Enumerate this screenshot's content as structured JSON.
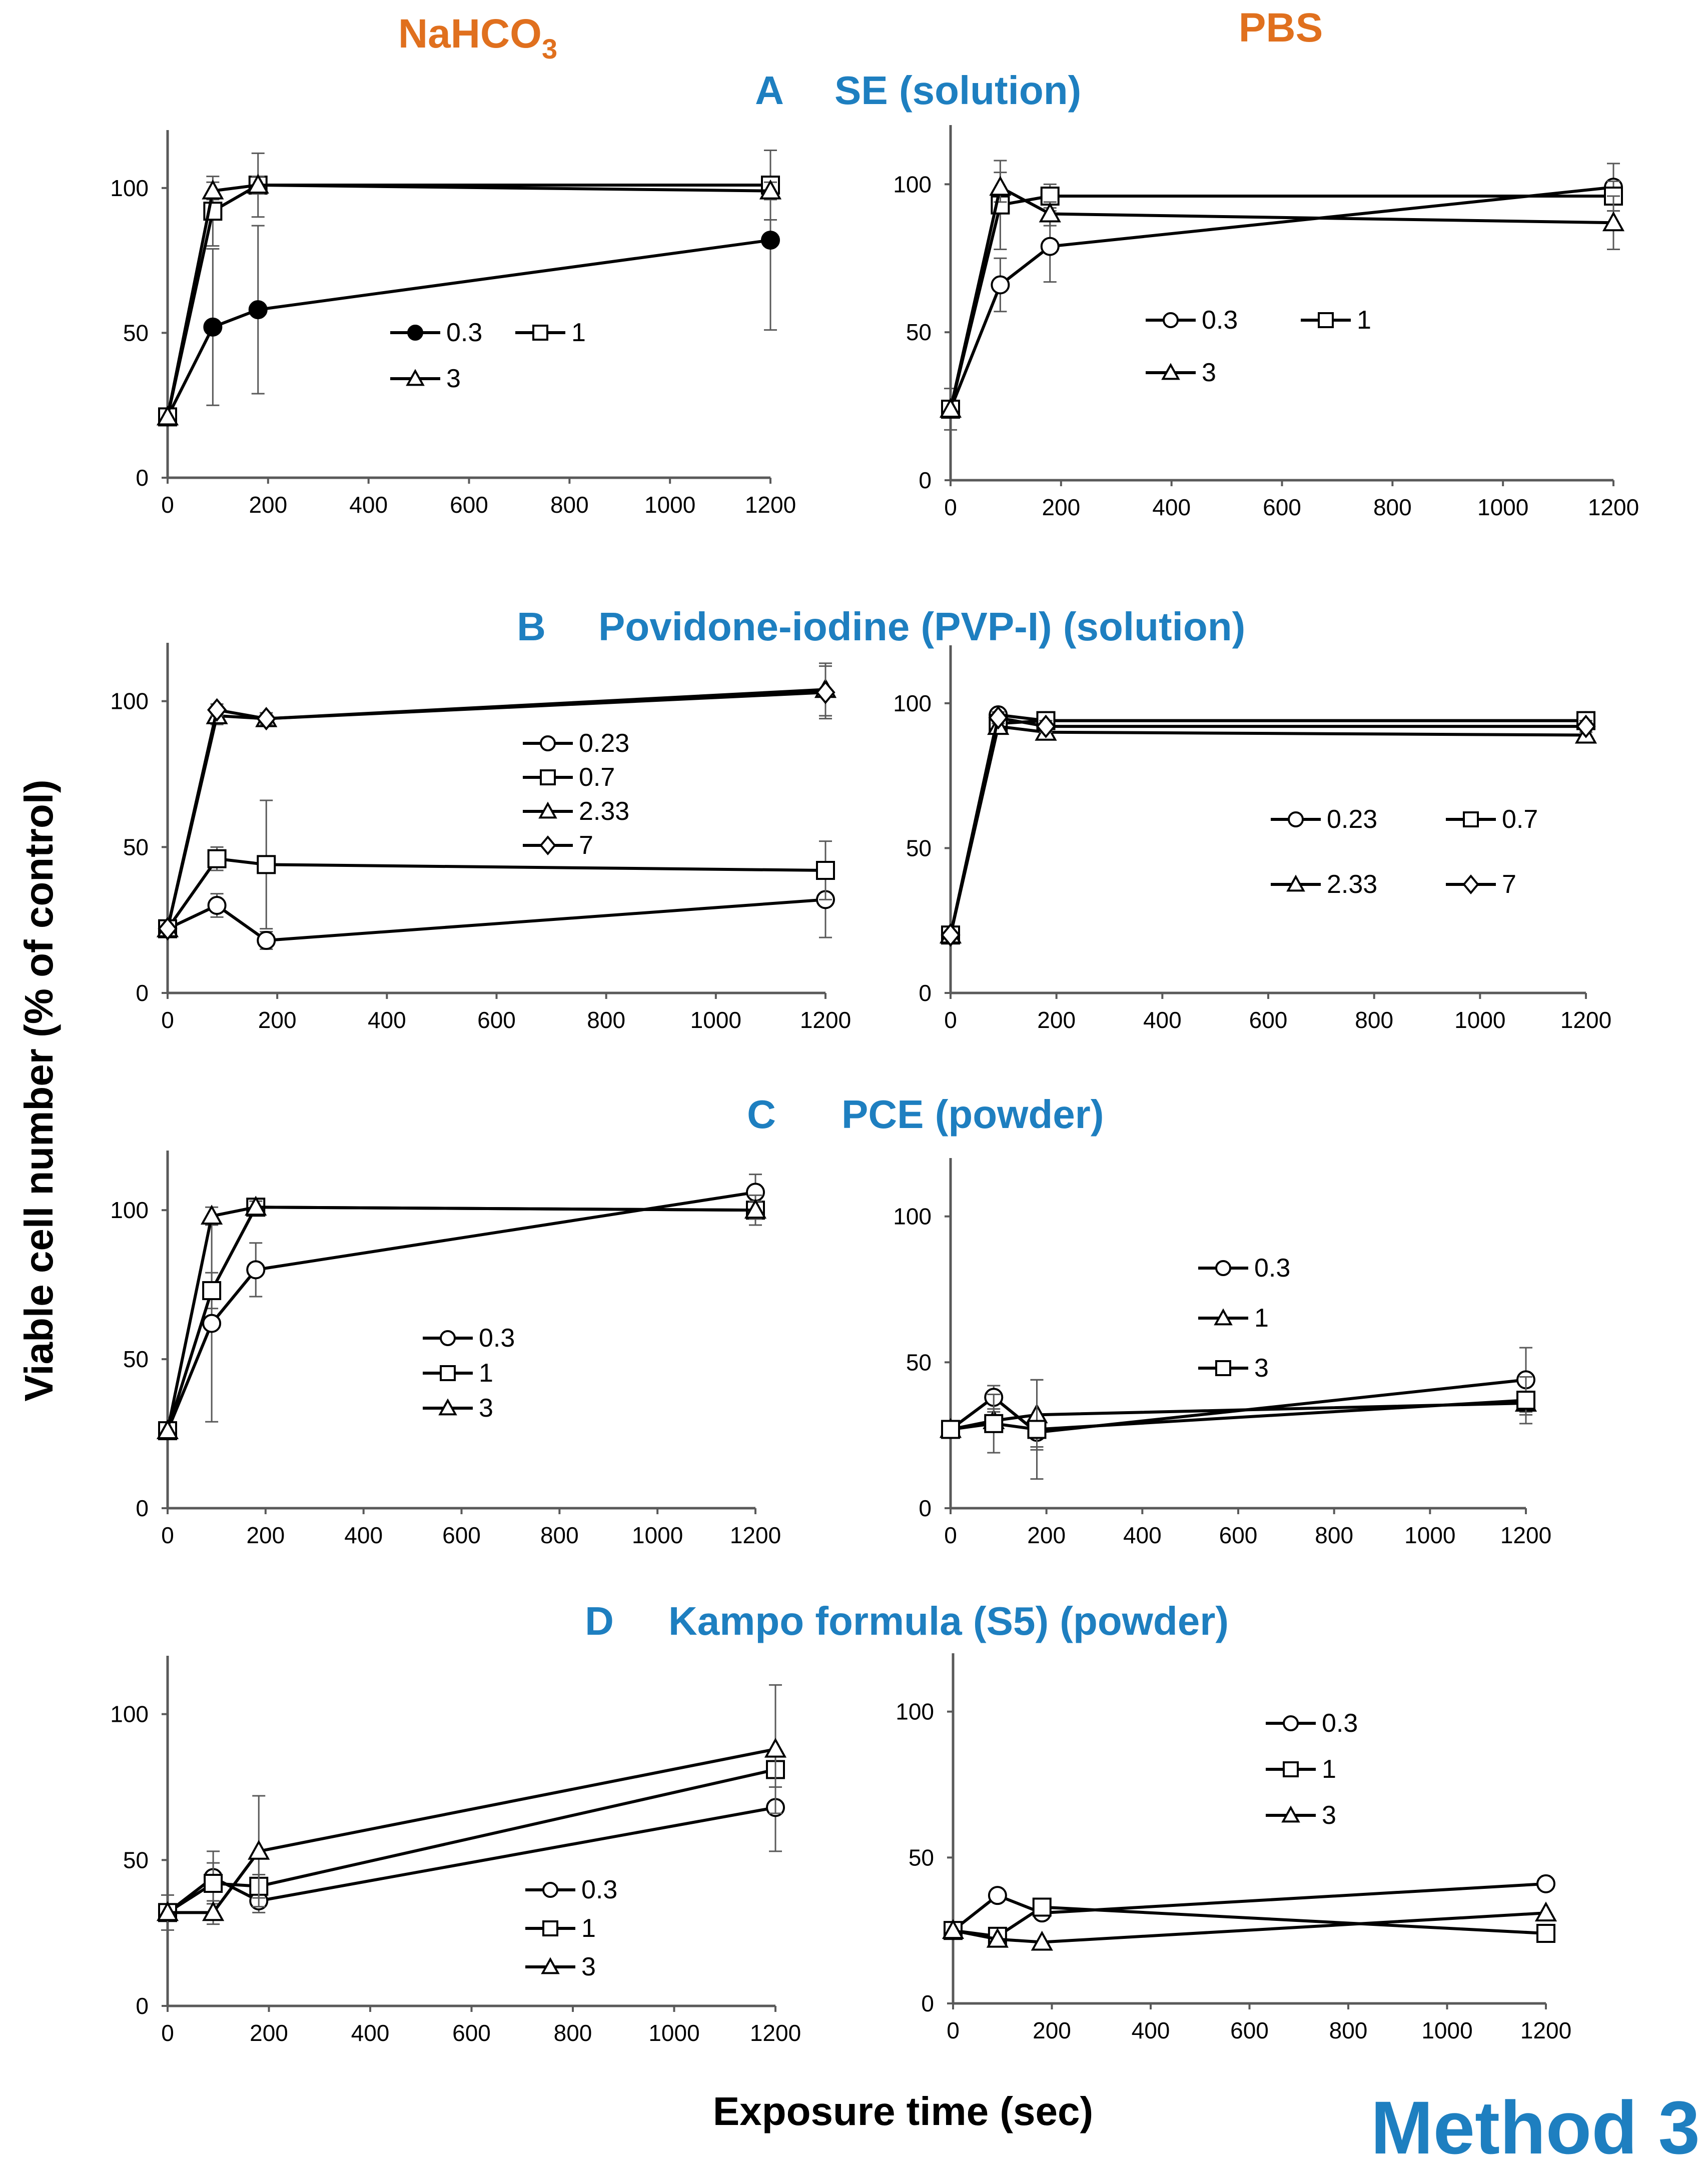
{
  "column_headers": {
    "left": "NaHCO",
    "left_sub": "3",
    "right": "PBS"
  },
  "y_axis_label": "Viable cell number (% of control)",
  "x_axis_label": "Exposure time (sec)",
  "corner_label": "Method 3",
  "colors": {
    "header": "#e0701e",
    "panel_title": "#1e7fc0",
    "ink": "#000000",
    "axis": "#595959"
  },
  "panel_titles": [
    {
      "letter": "A",
      "text": "SE (solution)"
    },
    {
      "letter": "B",
      "text": "Povidone-iodine (PVP-I) (solution)"
    },
    {
      "letter": "C",
      "text": "PCE (powder)"
    },
    {
      "letter": "D",
      "text": "Kampo formula (S5) (powder)"
    }
  ],
  "chart_data": [
    {
      "type": "line",
      "panel": "A",
      "buffer": "NaHCO3",
      "x": [
        0,
        90,
        180,
        1200
      ],
      "xlim": [
        0,
        1200
      ],
      "ylim": [
        0,
        120
      ],
      "xticks": [
        0,
        200,
        400,
        600,
        800,
        1000,
        1200
      ],
      "yticks": [
        0,
        50,
        100
      ],
      "series": [
        {
          "name": "0.3",
          "marker": "circle",
          "filled": true,
          "values": [
            21,
            52,
            58,
            82
          ],
          "errors": [
            null,
            27,
            29,
            31
          ]
        },
        {
          "name": "1",
          "marker": "square",
          "filled": false,
          "values": [
            21,
            92,
            101,
            101
          ],
          "errors": [
            null,
            12,
            11,
            12
          ]
        },
        {
          "name": "3",
          "marker": "triangle",
          "filled": false,
          "values": [
            21,
            99,
            101,
            99
          ],
          "errors": [
            null,
            3,
            3,
            3
          ]
        }
      ]
    },
    {
      "type": "line",
      "panel": "A",
      "buffer": "PBS",
      "x": [
        0,
        90,
        180,
        1200
      ],
      "xlim": [
        0,
        1200
      ],
      "ylim": [
        0,
        120
      ],
      "xticks": [
        0,
        200,
        400,
        600,
        800,
        1000,
        1200
      ],
      "yticks": [
        0,
        50,
        100
      ],
      "series": [
        {
          "name": "0.3",
          "marker": "circle",
          "filled": false,
          "values": [
            24,
            66,
            79,
            99
          ],
          "errors": [
            7,
            9,
            12,
            8
          ]
        },
        {
          "name": "1",
          "marker": "square",
          "filled": false,
          "values": [
            24,
            93,
            96,
            96
          ],
          "errors": [
            null,
            15,
            4,
            5
          ]
        },
        {
          "name": "3",
          "marker": "triangle",
          "filled": false,
          "values": [
            24,
            99,
            90,
            87
          ],
          "errors": [
            null,
            5,
            4,
            9
          ]
        }
      ]
    },
    {
      "type": "line",
      "panel": "B",
      "buffer": "NaHCO3",
      "x": [
        0,
        90,
        180,
        1200
      ],
      "xlim": [
        0,
        1200
      ],
      "ylim": [
        0,
        120
      ],
      "xticks": [
        0,
        200,
        400,
        600,
        800,
        1000,
        1200
      ],
      "yticks": [
        0,
        50,
        100
      ],
      "series": [
        {
          "name": "0.23",
          "marker": "circle",
          "filled": false,
          "values": [
            22,
            30,
            18,
            32
          ],
          "errors": [
            null,
            4,
            3,
            13
          ]
        },
        {
          "name": "0.7",
          "marker": "square",
          "filled": false,
          "values": [
            22,
            46,
            44,
            42
          ],
          "errors": [
            null,
            4,
            22,
            10
          ]
        },
        {
          "name": "2.33",
          "marker": "triangle",
          "filled": false,
          "values": [
            22,
            95,
            94,
            104
          ],
          "errors": [
            null,
            3,
            2,
            9
          ]
        },
        {
          "name": "7",
          "marker": "diamond",
          "filled": false,
          "values": [
            22,
            97,
            94,
            103
          ],
          "errors": [
            null,
            2,
            2,
            9
          ]
        }
      ]
    },
    {
      "type": "line",
      "panel": "B",
      "buffer": "PBS",
      "x": [
        0,
        90,
        180,
        1200
      ],
      "xlim": [
        0,
        1200
      ],
      "ylim": [
        0,
        120
      ],
      "xticks": [
        0,
        200,
        400,
        600,
        800,
        1000,
        1200
      ],
      "yticks": [
        0,
        50,
        100
      ],
      "series": [
        {
          "name": "0.23",
          "marker": "circle",
          "filled": false,
          "values": [
            20,
            96,
            94,
            94
          ],
          "errors": [
            null,
            2,
            2,
            2
          ]
        },
        {
          "name": "0.7",
          "marker": "square",
          "filled": false,
          "values": [
            20,
            93,
            94,
            94
          ],
          "errors": [
            null,
            2,
            2,
            2
          ]
        },
        {
          "name": "2.33",
          "marker": "triangle",
          "filled": false,
          "values": [
            20,
            92,
            90,
            89
          ],
          "errors": [
            null,
            2,
            2,
            2
          ]
        },
        {
          "name": "7",
          "marker": "diamond",
          "filled": false,
          "values": [
            20,
            95,
            92,
            92
          ],
          "errors": [
            null,
            2,
            2,
            2
          ]
        }
      ]
    },
    {
      "type": "line",
      "panel": "C",
      "buffer": "NaHCO3",
      "x": [
        0,
        90,
        180,
        1200
      ],
      "xlim": [
        0,
        1200
      ],
      "ylim": [
        0,
        120
      ],
      "xticks": [
        0,
        200,
        400,
        600,
        800,
        1000,
        1200
      ],
      "yticks": [
        0,
        50,
        100
      ],
      "series": [
        {
          "name": "0.3",
          "marker": "circle",
          "filled": false,
          "values": [
            26,
            62,
            80,
            106
          ],
          "errors": [
            null,
            33,
            9,
            6
          ]
        },
        {
          "name": "1",
          "marker": "square",
          "filled": false,
          "values": [
            26,
            73,
            101,
            100
          ],
          "errors": [
            null,
            6,
            2,
            5
          ]
        },
        {
          "name": "3",
          "marker": "triangle",
          "filled": false,
          "values": [
            26,
            98,
            101,
            100
          ],
          "errors": [
            null,
            3,
            2,
            3
          ]
        }
      ]
    },
    {
      "type": "line",
      "panel": "C",
      "buffer": "PBS",
      "x": [
        0,
        90,
        180,
        1200
      ],
      "xlim": [
        0,
        1200
      ],
      "ylim": [
        0,
        120
      ],
      "xticks": [
        0,
        200,
        400,
        600,
        800,
        1000,
        1200
      ],
      "yticks": [
        0,
        50,
        100
      ],
      "series": [
        {
          "name": "0.3",
          "marker": "circle",
          "filled": false,
          "values": [
            27,
            38,
            26,
            44
          ],
          "errors": [
            null,
            4,
            5,
            11
          ]
        },
        {
          "name": "1",
          "marker": "triangle",
          "filled": false,
          "values": [
            27,
            30,
            32,
            36
          ],
          "errors": [
            null,
            3,
            12,
            4
          ]
        },
        {
          "name": "3",
          "marker": "square",
          "filled": false,
          "values": [
            27,
            29,
            27,
            37
          ],
          "errors": [
            null,
            10,
            17,
            8
          ]
        }
      ]
    },
    {
      "type": "line",
      "panel": "D",
      "buffer": "NaHCO3",
      "x": [
        0,
        90,
        180,
        1200
      ],
      "xlim": [
        0,
        1200
      ],
      "ylim": [
        0,
        120
      ],
      "xticks": [
        0,
        200,
        400,
        600,
        800,
        1000,
        1200
      ],
      "yticks": [
        0,
        50,
        100
      ],
      "series": [
        {
          "name": "0.3",
          "marker": "circle",
          "filled": false,
          "values": [
            32,
            44,
            36,
            68
          ],
          "errors": [
            null,
            9,
            4,
            15
          ]
        },
        {
          "name": "1",
          "marker": "square",
          "filled": false,
          "values": [
            32,
            42,
            41,
            81
          ],
          "errors": [
            null,
            7,
            4,
            6
          ]
        },
        {
          "name": "3",
          "marker": "triangle",
          "filled": false,
          "values": [
            32,
            32,
            53,
            88
          ],
          "errors": [
            6,
            4,
            19,
            22
          ]
        }
      ]
    },
    {
      "type": "line",
      "panel": "D",
      "buffer": "PBS",
      "x": [
        0,
        90,
        180,
        1200
      ],
      "xlim": [
        0,
        1200
      ],
      "ylim": [
        0,
        120
      ],
      "xticks": [
        0,
        200,
        400,
        600,
        800,
        1000,
        1200
      ],
      "yticks": [
        0,
        50,
        100
      ],
      "series": [
        {
          "name": "0.3",
          "marker": "circle",
          "filled": false,
          "values": [
            25,
            37,
            31,
            41
          ],
          "errors": [
            null,
            null,
            null,
            null
          ]
        },
        {
          "name": "1",
          "marker": "square",
          "filled": false,
          "values": [
            25,
            23,
            33,
            24
          ],
          "errors": [
            null,
            null,
            null,
            null
          ]
        },
        {
          "name": "3",
          "marker": "triangle",
          "filled": false,
          "values": [
            25,
            22,
            21,
            31
          ],
          "errors": [
            null,
            null,
            null,
            null
          ]
        }
      ]
    }
  ]
}
